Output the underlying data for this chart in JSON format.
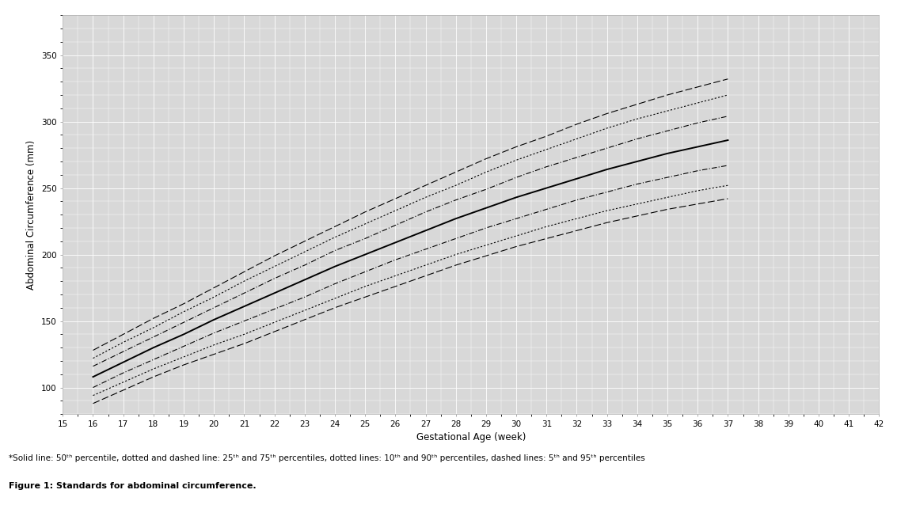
{
  "xlabel": "Gestational Age (week)",
  "ylabel": "Abdominal Circumference (mm)",
  "plot_bg_color": "#d8d8d8",
  "fig_bg_color": "#ffffff",
  "line_color": "#000000",
  "weeks": [
    16,
    17,
    18,
    19,
    20,
    21,
    22,
    23,
    24,
    25,
    26,
    27,
    28,
    29,
    30,
    31,
    32,
    33,
    34,
    35,
    36,
    37
  ],
  "p05": [
    88,
    98,
    108,
    117,
    125,
    133,
    142,
    151,
    160,
    168,
    176,
    184,
    192,
    199,
    206,
    212,
    218,
    224,
    229,
    234,
    238,
    242
  ],
  "p10": [
    94,
    104,
    114,
    123,
    132,
    140,
    149,
    158,
    167,
    176,
    184,
    192,
    200,
    207,
    214,
    221,
    227,
    233,
    238,
    243,
    248,
    252
  ],
  "p25": [
    100,
    111,
    121,
    131,
    141,
    150,
    159,
    168,
    178,
    187,
    196,
    204,
    212,
    220,
    227,
    234,
    241,
    247,
    253,
    258,
    263,
    267
  ],
  "p50": [
    108,
    119,
    130,
    140,
    151,
    161,
    171,
    181,
    191,
    200,
    209,
    218,
    227,
    235,
    243,
    250,
    257,
    264,
    270,
    276,
    281,
    286
  ],
  "p75": [
    116,
    127,
    138,
    149,
    160,
    171,
    182,
    192,
    203,
    212,
    222,
    232,
    241,
    249,
    258,
    266,
    273,
    280,
    287,
    293,
    299,
    304
  ],
  "p90": [
    122,
    134,
    145,
    157,
    168,
    180,
    191,
    202,
    213,
    223,
    233,
    243,
    252,
    262,
    271,
    279,
    287,
    295,
    302,
    308,
    314,
    320
  ],
  "p95": [
    128,
    140,
    152,
    163,
    175,
    187,
    199,
    210,
    221,
    232,
    242,
    252,
    262,
    272,
    281,
    289,
    298,
    306,
    313,
    320,
    326,
    332
  ],
  "xlim": [
    15,
    42
  ],
  "ylim": [
    80,
    380
  ],
  "yticks": [
    100,
    150,
    200,
    250,
    300,
    350
  ],
  "xticks": [
    15,
    16,
    17,
    18,
    19,
    20,
    21,
    22,
    23,
    24,
    25,
    26,
    27,
    28,
    29,
    30,
    31,
    32,
    33,
    34,
    35,
    36,
    37,
    38,
    39,
    40,
    41,
    42
  ],
  "caption_line1": "*Solid line: 50ᵗʰ percentile, dotted and dashed line: 25ᵗʰ and 75ᵗʰ percentiles, dotted lines: 10ᵗʰ and 90ᵗʰ percentiles, dashed lines: 5ᵗʰ and 95ᵗʰ percentiles",
  "caption_line2": "Figure 1: Standards for abdominal circumference."
}
